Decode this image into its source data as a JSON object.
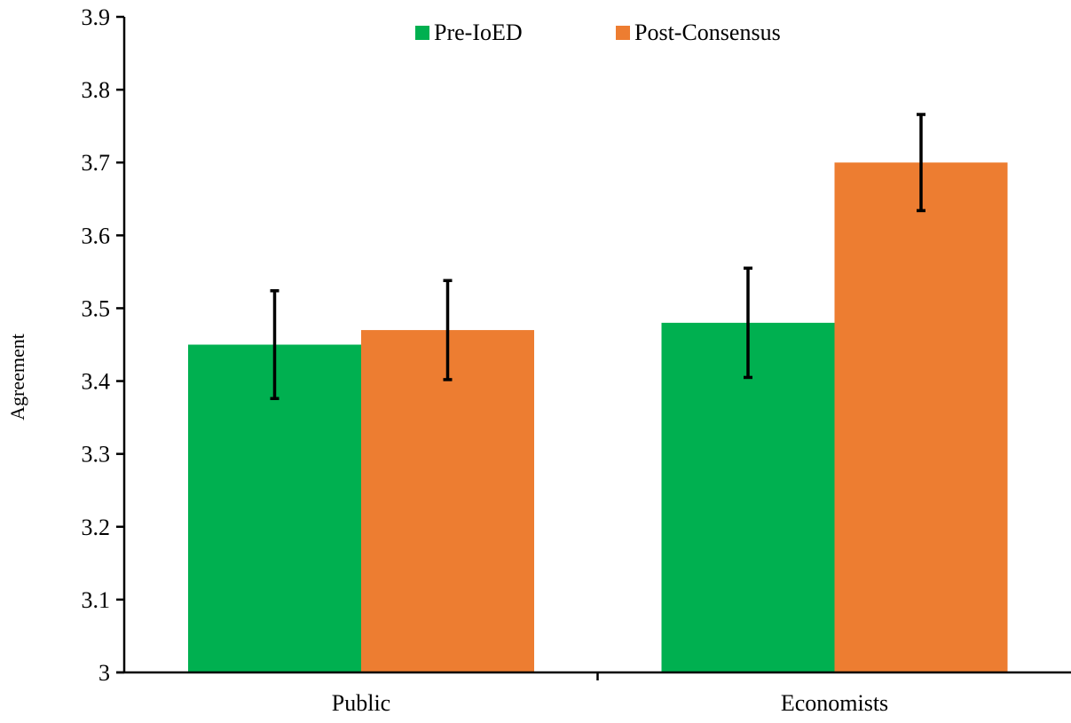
{
  "chart_data": {
    "type": "bar",
    "title": "",
    "xlabel": "",
    "ylabel": "Agreement",
    "categories": [
      "Public",
      "Economists"
    ],
    "series": [
      {
        "name": "Pre-IoED",
        "color": "#00b050",
        "values": [
          3.45,
          3.48
        ],
        "error": [
          0.074,
          0.075
        ]
      },
      {
        "name": "Post-Consensus",
        "color": "#ed7d31",
        "values": [
          3.47,
          3.7
        ],
        "error": [
          0.068,
          0.066
        ]
      }
    ],
    "ylim": [
      3,
      3.9
    ],
    "yticks": [
      3,
      3.1,
      3.2,
      3.3,
      3.4,
      3.5,
      3.6,
      3.7,
      3.8,
      3.9
    ],
    "ytick_labels": [
      "3",
      "3.1",
      "3.2",
      "3.3",
      "3.4",
      "3.5",
      "3.6",
      "3.7",
      "3.8",
      "3.9"
    ],
    "grid": false,
    "legend": {
      "position": "top-center"
    },
    "error_bar_color": "#000000"
  }
}
